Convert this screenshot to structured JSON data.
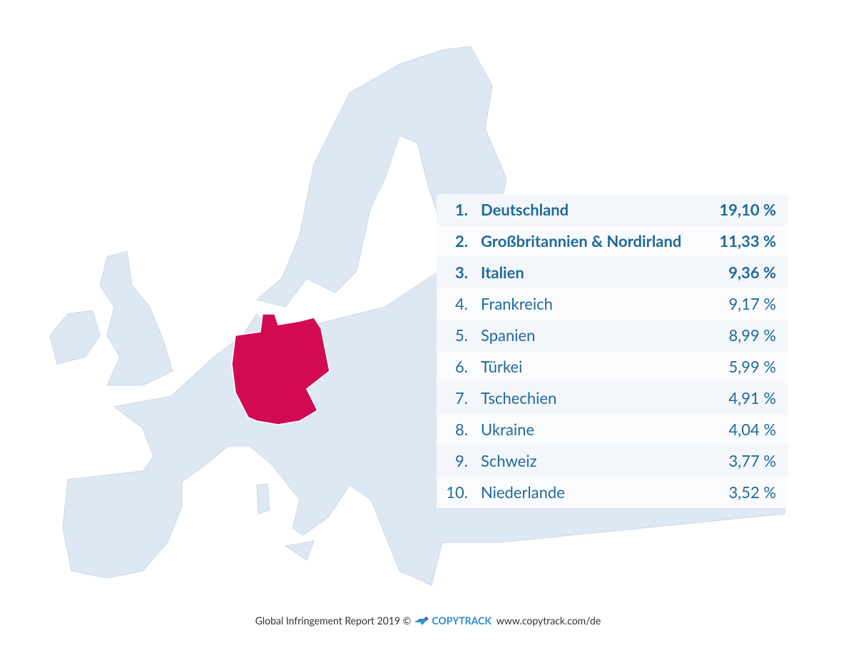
{
  "table": {
    "rows": [
      [
        "1.",
        "Deutschland",
        "19,10 %"
      ],
      [
        "2.",
        "Großbritannien & Nordirland",
        "11,33 %"
      ],
      [
        "3.",
        "Italien",
        "9,36 %"
      ],
      [
        "4.",
        "Frankreich",
        "9,17 %"
      ],
      [
        "5.",
        "Spanien",
        "8,99 %"
      ],
      [
        "6.",
        "Türkei",
        "5,99 %"
      ],
      [
        "7.",
        "Tschechien",
        "4,91 %"
      ],
      [
        "8.",
        "Ukraine",
        "4,04 %"
      ],
      [
        "9.",
        "Schweiz",
        "3,77 %"
      ],
      [
        "10.",
        "Niederlande",
        "3,52 %"
      ]
    ]
  },
  "footer": {
    "report": "Global Infringement Report 2019",
    "copyright": "©",
    "brand": "COPYTRACK",
    "url": "www.copytrack.com/de"
  }
}
